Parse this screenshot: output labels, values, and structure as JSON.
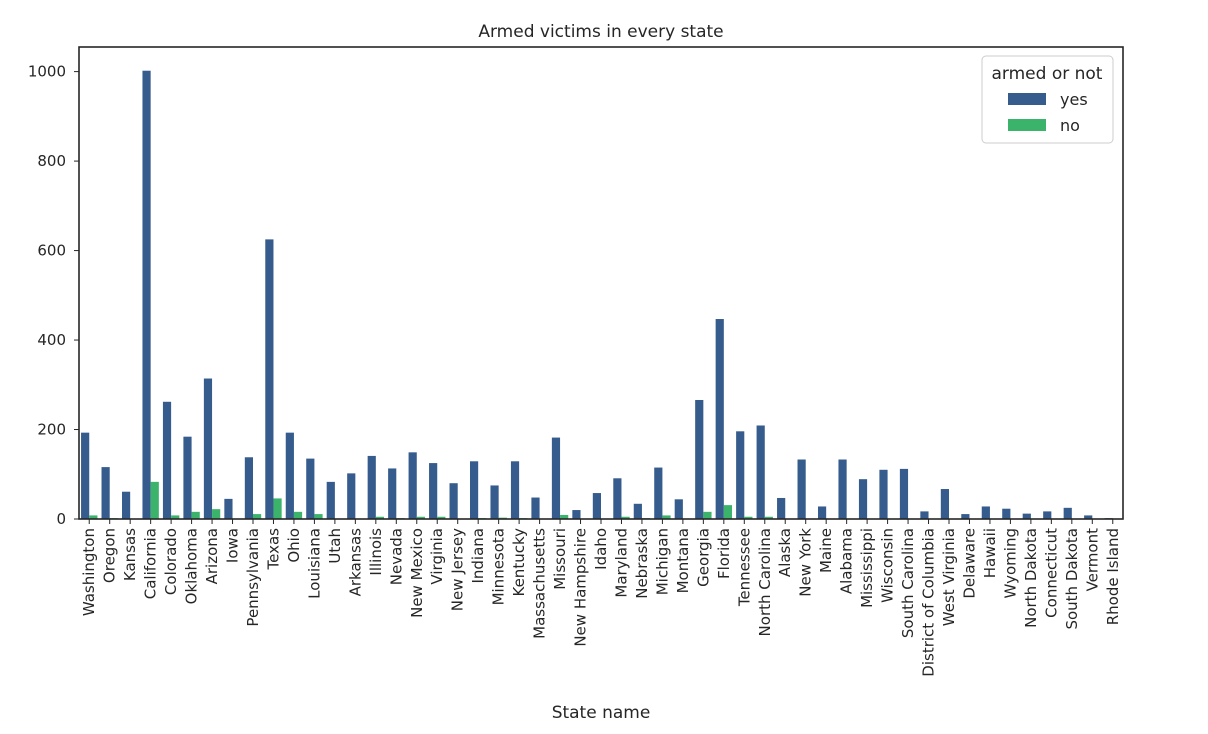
{
  "chart_data": {
    "type": "bar",
    "title": "Armed victims in every state",
    "xlabel": "State name",
    "ylabel": "",
    "ylim": [
      0,
      1055
    ],
    "yticks": [
      0,
      200,
      400,
      600,
      800,
      1000
    ],
    "grid": false,
    "legend": {
      "title": "armed or not",
      "placement": "top-right"
    },
    "categories": [
      "Washington",
      "Oregon",
      "Kansas",
      "California",
      "Colorado",
      "Oklahoma",
      "Arizona",
      "Iowa",
      "Pennsylvania",
      "Texas",
      "Ohio",
      "Louisiana",
      "Utah",
      "Arkansas",
      "Illinois",
      "Nevada",
      "New Mexico",
      "Virginia",
      "New Jersey",
      "Indiana",
      "Minnesota",
      "Kentucky",
      "Massachusetts",
      "Missouri",
      "New Hampshire",
      "Idaho",
      "Maryland",
      "Nebraska",
      "Michigan",
      "Montana",
      "Georgia",
      "Florida",
      "Tennessee",
      "North Carolina",
      "Alaska",
      "New York",
      "Maine",
      "Alabama",
      "Mississippi",
      "Wisconsin",
      "South Carolina",
      "District of Columbia",
      "West Virginia",
      "Delaware",
      "Hawaii",
      "Wyoming",
      "North Dakota",
      "Connecticut",
      "South Dakota",
      "Vermont",
      "Rhode Island"
    ],
    "series": [
      {
        "name": "yes",
        "color": "#365c8d",
        "values": [
          193,
          116,
          61,
          1002,
          262,
          184,
          314,
          45,
          138,
          625,
          193,
          135,
          83,
          102,
          141,
          113,
          149,
          125,
          80,
          129,
          75,
          129,
          48,
          182,
          20,
          58,
          91,
          34,
          115,
          44,
          266,
          447,
          196,
          209,
          47,
          133,
          28,
          133,
          89,
          110,
          112,
          17,
          67,
          11,
          28,
          23,
          12,
          17,
          25,
          8,
          2
        ]
      },
      {
        "name": "no",
        "color": "#3bb36b",
        "values": [
          8,
          2,
          1,
          83,
          8,
          16,
          22,
          1,
          11,
          46,
          16,
          11,
          1,
          1,
          5,
          2,
          5,
          5,
          1,
          2,
          3,
          2,
          1,
          9,
          1,
          1,
          5,
          2,
          8,
          1,
          16,
          31,
          5,
          5,
          1,
          1,
          1,
          1,
          1,
          1,
          1,
          1,
          1,
          1,
          1,
          1,
          1,
          1,
          1,
          1,
          1
        ]
      }
    ]
  }
}
